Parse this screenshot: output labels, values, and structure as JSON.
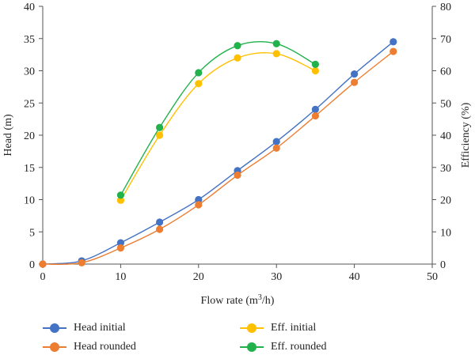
{
  "chart_data": {
    "type": "line",
    "xlabel": "Flow rate (m³/h)",
    "ylabel_left": "Head (m)",
    "ylabel_right": "Efficiency (%)",
    "xlim": [
      0,
      50
    ],
    "ylim_left": [
      0,
      40
    ],
    "ylim_right": [
      0,
      80
    ],
    "x_ticks": [
      0,
      10,
      20,
      30,
      40,
      50
    ],
    "y_ticks_left": [
      0,
      5,
      10,
      15,
      20,
      25,
      30,
      35,
      40
    ],
    "y_ticks_right": [
      0,
      10,
      20,
      30,
      40,
      50,
      60,
      70,
      80
    ],
    "grid": false,
    "legend_position": "bottom",
    "series": [
      {
        "name": "Head initial",
        "axis": "left",
        "color": "#4472C4",
        "x": [
          0,
          5,
          10,
          15,
          20,
          25,
          30,
          35,
          40,
          45
        ],
        "y": [
          0,
          0.5,
          3.3,
          6.5,
          10,
          14.5,
          19,
          24,
          29.5,
          34.5
        ]
      },
      {
        "name": "Head rounded",
        "axis": "left",
        "color": "#ED7D31",
        "x": [
          0,
          5,
          10,
          15,
          20,
          25,
          30,
          35,
          40,
          45
        ],
        "y": [
          0,
          0.2,
          2.5,
          5.4,
          9.2,
          13.8,
          18,
          23,
          28.2,
          33
        ]
      },
      {
        "name": "Eff. initial",
        "axis": "right",
        "color": "#FFC000",
        "x": [
          10,
          15,
          20,
          25,
          30,
          35
        ],
        "y": [
          19.8,
          40,
          56,
          64,
          65.3,
          60
        ]
      },
      {
        "name": "Eff. rounded",
        "axis": "right",
        "color": "#22B24C",
        "x": [
          10,
          15,
          20,
          25,
          30,
          35
        ],
        "y": [
          21.4,
          42.4,
          59.4,
          67.8,
          68.4,
          62
        ]
      }
    ]
  },
  "legend": {
    "head_initial": "Head initial",
    "head_rounded": "Head rounded",
    "eff_initial": "Eff. initial",
    "eff_rounded": "Eff. rounded"
  }
}
